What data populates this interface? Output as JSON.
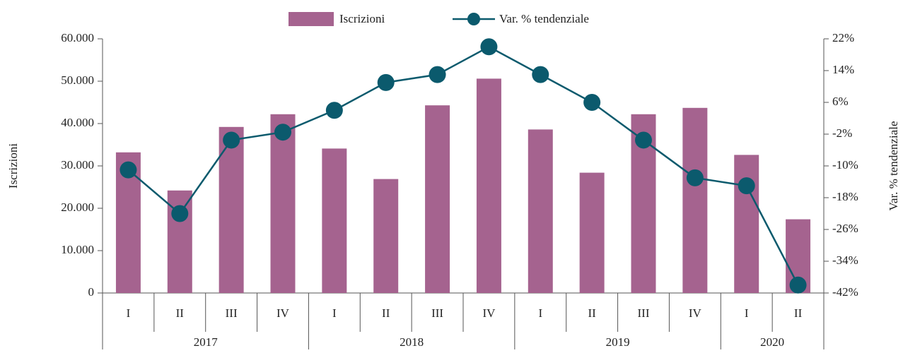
{
  "chart_data": {
    "type": "bar+line",
    "groups": [
      {
        "name": "2017",
        "categories": [
          "I",
          "II",
          "III",
          "IV"
        ]
      },
      {
        "name": "2018",
        "categories": [
          "I",
          "II",
          "III",
          "IV"
        ]
      },
      {
        "name": "2019",
        "categories": [
          "I",
          "II",
          "III",
          "IV"
        ]
      },
      {
        "name": "2020",
        "categories": [
          "I",
          "II"
        ]
      }
    ],
    "series": [
      {
        "name": "Iscrizioni",
        "type": "bar",
        "color": "#a5638f",
        "axis": "y",
        "values": [
          33200,
          24200,
          39200,
          42200,
          34100,
          26900,
          44300,
          50600,
          38600,
          28400,
          42200,
          43700,
          32600,
          17400
        ]
      },
      {
        "name": "Var. % tendenziale",
        "type": "line",
        "color": "#0b5a6d",
        "axis": "y2",
        "values": [
          -11,
          -22,
          -3.5,
          -1.5,
          4,
          11,
          13,
          20,
          13,
          6,
          -3.5,
          -13,
          -15,
          -40
        ]
      }
    ],
    "ylabel": "Iscrizioni",
    "y2label": "Var. % tendenziale",
    "ylim": [
      0,
      60000
    ],
    "yticks": [
      0,
      {
        "value": 10000,
        "label": "10.000"
      },
      {
        "value": 20000,
        "label": "20.000"
      },
      {
        "value": 30000,
        "label": "30.000"
      },
      {
        "value": 40000,
        "label": "40.000"
      },
      {
        "value": 50000,
        "label": "50.000"
      },
      {
        "value": 60000,
        "label": "60.000"
      }
    ],
    "y2lim": [
      -42,
      22
    ],
    "y2ticks": [
      {
        "value": -42,
        "label": "-42%"
      },
      {
        "value": -34,
        "label": "-34%"
      },
      {
        "value": -26,
        "label": "-26%"
      },
      {
        "value": -18,
        "label": "-18%"
      },
      {
        "value": -10,
        "label": "-10%"
      },
      {
        "value": -2,
        "label": "-2%"
      },
      {
        "value": 6,
        "label": "6%"
      },
      {
        "value": 14,
        "label": "14%"
      },
      {
        "value": 22,
        "label": "22%"
      }
    ],
    "legend": "top"
  }
}
